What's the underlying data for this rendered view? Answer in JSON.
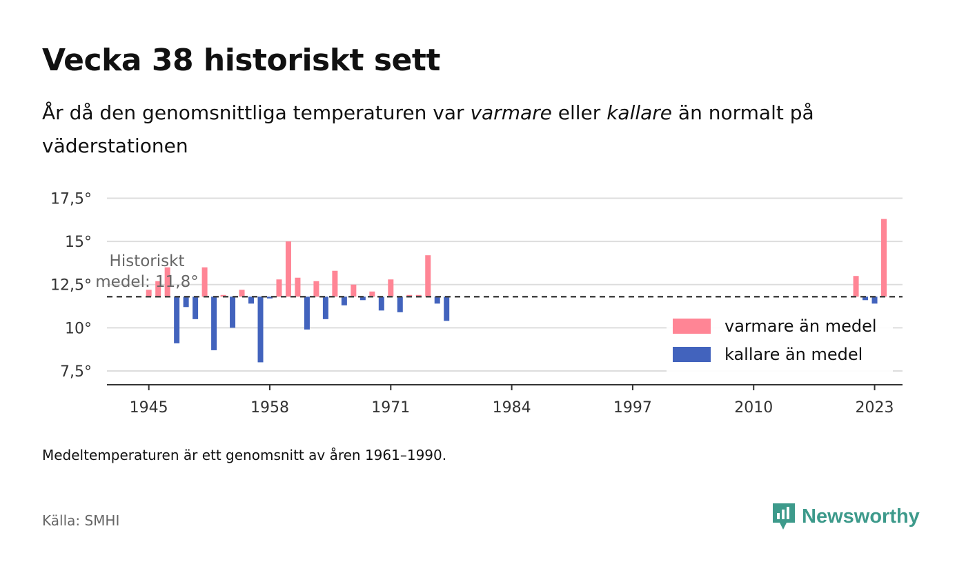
{
  "title": "Vecka 38 historiskt sett",
  "subtitle": {
    "part1": "År då den genomsnittliga temperaturen var ",
    "warm_word": "varmare",
    "part2": " eller ",
    "cold_word": "kallare",
    "part3": " än normalt på väderstationen"
  },
  "footnote": "Medeltemperaturen är ett genomsnitt av åren 1961–1990.",
  "source": "Källa: SMHI",
  "brand": {
    "name": "Newsworthy",
    "icon": "newsworthy-logo-icon",
    "color": "#3d9a8b"
  },
  "chart_data": {
    "type": "bar",
    "baseline": 11.8,
    "baseline_label_line1": "Historiskt",
    "baseline_label_line2": "medel: 11,8°",
    "ylim": [
      6.7,
      18.2
    ],
    "xlim": [
      1940.5,
      2026
    ],
    "yticks": [
      7.5,
      10,
      12.5,
      15,
      17.5
    ],
    "ytick_labels": [
      "7,5°",
      "10°",
      "12,5°",
      "15°",
      "17,5°"
    ],
    "xticks": [
      1945,
      1958,
      1971,
      1984,
      1997,
      2010,
      2023
    ],
    "xtick_labels": [
      "1945",
      "1958",
      "1971",
      "1984",
      "1997",
      "2010",
      "2023"
    ],
    "colors": {
      "warm": "#ff8595",
      "cold": "#4263bd",
      "baseline": "#444444",
      "grid": "#dddddd"
    },
    "legend": {
      "position": "right",
      "warm_label": "varmare än medel",
      "cold_label": "kallare än medel"
    },
    "x": [
      1945,
      1946,
      1947,
      1948,
      1949,
      1950,
      1951,
      1952,
      1953,
      1954,
      1955,
      1956,
      1957,
      1958,
      1959,
      1960,
      1961,
      1962,
      1963,
      1964,
      1965,
      1966,
      1967,
      1968,
      1969,
      1970,
      1971,
      1972,
      1973,
      1974,
      1975,
      1976,
      1977,
      2021,
      2022,
      2023,
      2024
    ],
    "values": [
      12.2,
      12.7,
      13.5,
      9.1,
      11.2,
      10.5,
      13.5,
      8.7,
      11.9,
      10.0,
      12.2,
      11.4,
      8.0,
      11.7,
      12.8,
      15.0,
      12.9,
      9.9,
      12.7,
      10.5,
      13.3,
      11.3,
      12.5,
      11.6,
      12.1,
      11.0,
      12.8,
      10.9,
      11.9,
      11.9,
      14.2,
      11.4,
      10.4,
      13.0,
      11.6,
      11.4,
      16.3
    ]
  }
}
